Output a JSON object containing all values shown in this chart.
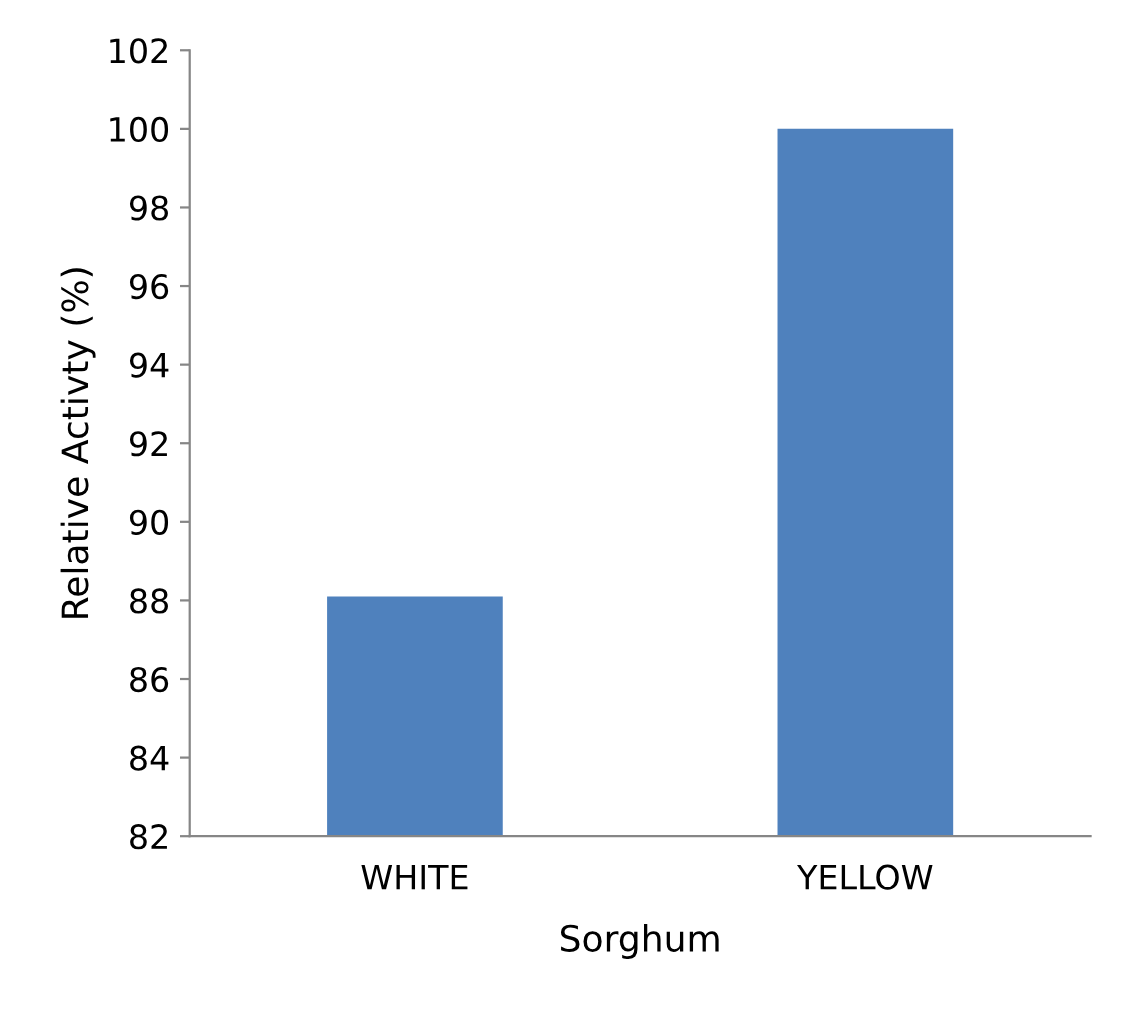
{
  "chart_data": {
    "type": "bar",
    "xlabel": "Sorghum",
    "ylabel": "Relative Activty (%)",
    "categories": [
      "WHITE",
      "YELLOW"
    ],
    "values": [
      88.1,
      100
    ],
    "color": "#4f81bd",
    "ylim": [
      82,
      102
    ],
    "yticks": [
      82,
      84,
      86,
      88,
      90,
      92,
      94,
      96,
      98,
      100,
      102
    ],
    "grid": false
  }
}
